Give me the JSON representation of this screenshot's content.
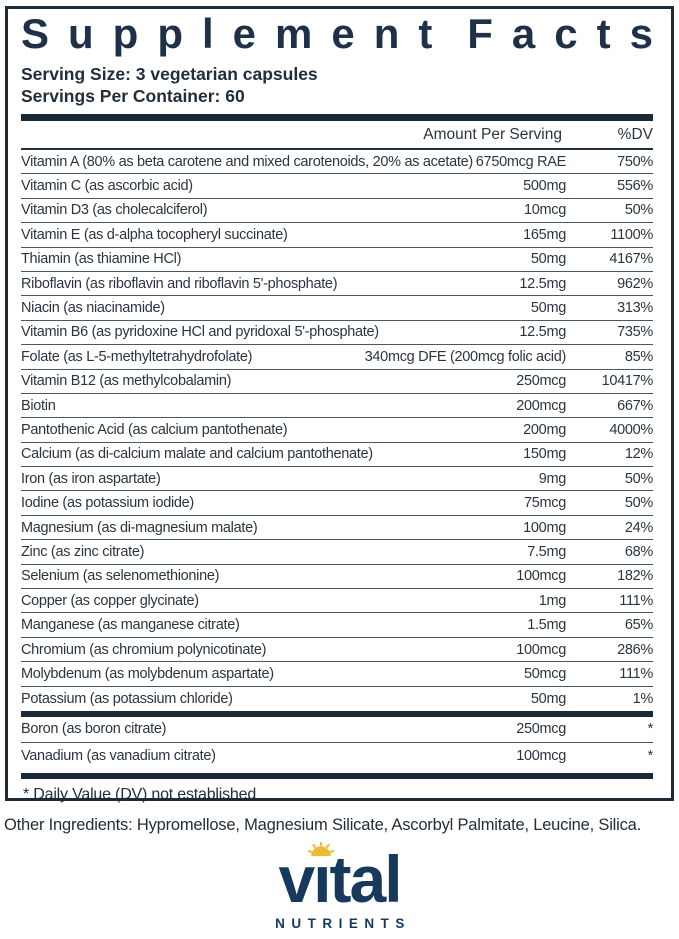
{
  "colors": {
    "ink": "#1d2b38",
    "title_navy": "#1e3148",
    "text": "#2b3541",
    "row_divider": "#4a5863",
    "logo_navy": "#17395e",
    "sun_gold": "#edbb31"
  },
  "title": {
    "full": "Supplement Facts",
    "word1": "Supplement",
    "word2": "Facts"
  },
  "serving_size": "Serving Size: 3 vegetarian capsules",
  "servings_per_container": "Servings Per Container: 60",
  "table": {
    "amount_header": "Amount Per Serving",
    "dv_header": "%DV",
    "rows": [
      {
        "name": "Vitamin A (80% as beta carotene and mixed carotenoids, 20% as acetate)",
        "amount": "6750mcg RAE",
        "dv": "750%"
      },
      {
        "name": "Vitamin C (as ascorbic acid)",
        "amount": "500mg",
        "dv": "556%"
      },
      {
        "name": "Vitamin D3 (as cholecalciferol)",
        "amount": "10mcg",
        "dv": "50%"
      },
      {
        "name": "Vitamin E (as d-alpha tocopheryl succinate)",
        "amount": "165mg",
        "dv": "1100%"
      },
      {
        "name": "Thiamin (as thiamine HCl)",
        "amount": "50mg",
        "dv": "4167%"
      },
      {
        "name": "Riboflavin (as riboflavin and riboflavin 5'-phosphate)",
        "amount": "12.5mg",
        "dv": "962%"
      },
      {
        "name": "Niacin (as niacinamide)",
        "amount": "50mg",
        "dv": "313%"
      },
      {
        "name": "Vitamin B6 (as pyridoxine HCl and pyridoxal 5'-phosphate)",
        "amount": "12.5mg",
        "dv": "735%"
      },
      {
        "name": "Folate (as L-5-methyltetrahydrofolate)",
        "amount": "340mcg DFE (200mcg folic acid)",
        "dv": "85%"
      },
      {
        "name": "Vitamin B12 (as methylcobalamin)",
        "amount": "250mcg",
        "dv": "10417%"
      },
      {
        "name": "Biotin",
        "amount": "200mcg",
        "dv": "667%"
      },
      {
        "name": "Pantothenic Acid (as calcium pantothenate)",
        "amount": "200mg",
        "dv": "4000%"
      },
      {
        "name": "Calcium (as di-calcium malate and calcium pantothenate)",
        "amount": "150mg",
        "dv": "12%"
      },
      {
        "name": "Iron (as iron aspartate)",
        "amount": "9mg",
        "dv": "50%"
      },
      {
        "name": "Iodine (as potassium iodide)",
        "amount": "75mcg",
        "dv": "50%"
      },
      {
        "name": "Magnesium (as di-magnesium malate)",
        "amount": "100mg",
        "dv": "24%"
      },
      {
        "name": "Zinc (as zinc citrate)",
        "amount": "7.5mg",
        "dv": "68%"
      },
      {
        "name": "Selenium (as selenomethionine)",
        "amount": "100mcg",
        "dv": "182%"
      },
      {
        "name": "Copper (as copper glycinate)",
        "amount": "1mg",
        "dv": "111%"
      },
      {
        "name": "Manganese (as manganese citrate)",
        "amount": "1.5mg",
        "dv": "65%"
      },
      {
        "name": "Chromium (as chromium polynicotinate)",
        "amount": "100mcg",
        "dv": "286%"
      },
      {
        "name": "Molybdenum (as molybdenum aspartate)",
        "amount": "50mcg",
        "dv": "111%"
      },
      {
        "name": "Potassium (as potassium chloride)",
        "amount": "50mg",
        "dv": "1%"
      }
    ],
    "secondary_rows": [
      {
        "name": "Boron (as boron citrate)",
        "amount": "250mcg",
        "dv": "*"
      },
      {
        "name": "Vanadium (as vanadium citrate)",
        "amount": "100mcg",
        "dv": "*"
      }
    ],
    "footnote": "* Daily Value (DV) not established"
  },
  "other_ingredients": "Other Ingredients: Hypromellose, Magnesium Silicate, Ascorbyl Palmitate, Leucine, Silica.",
  "logo": {
    "brand": "vital",
    "brand_pre": "v",
    "brand_i": "ı",
    "brand_post": "tal",
    "subtext": "NUTRIENTS",
    "icon": "sun-icon"
  }
}
